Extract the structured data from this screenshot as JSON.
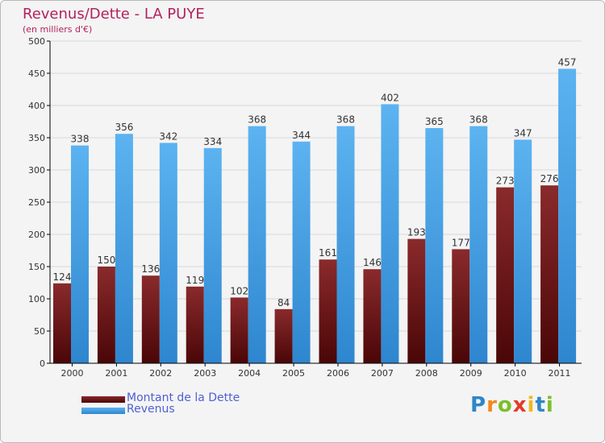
{
  "colors": {
    "title": "#b3215e",
    "dette": "#6b1114",
    "revenus": "#4aa3e6",
    "axis": "#000000",
    "grid": "#d8d8d8",
    "legend_text": "#4f5fd6"
  },
  "chart_data": {
    "type": "bar",
    "title": "Revenus/Dette - LA PUYE",
    "subtitle": "(en milliers d'€)",
    "xlabel": "",
    "ylabel": "",
    "ylim": [
      0,
      500
    ],
    "yticks": [
      0,
      50,
      100,
      150,
      200,
      250,
      300,
      350,
      400,
      450,
      500
    ],
    "grid": true,
    "legend_position": "bottom-left",
    "categories": [
      "2000",
      "2001",
      "2002",
      "2003",
      "2004",
      "2005",
      "2006",
      "2007",
      "2008",
      "2009",
      "2010",
      "2011"
    ],
    "series": [
      {
        "name": "Montant de la Dette",
        "values": [
          124,
          150,
          136,
          119,
          102,
          84,
          161,
          146,
          193,
          177,
          273,
          276
        ]
      },
      {
        "name": "Revenus",
        "values": [
          338,
          356,
          342,
          334,
          368,
          344,
          368,
          402,
          365,
          368,
          347,
          457
        ]
      }
    ]
  },
  "logo": {
    "letters": [
      "P",
      "r",
      "o",
      "x",
      "i",
      "t",
      "i"
    ],
    "letter_colors": [
      "#2f86c8",
      "#f08a1c",
      "#7bbf2a",
      "#e23b2a",
      "#f0b81c",
      "#2f86c8",
      "#7bbf2a"
    ]
  }
}
